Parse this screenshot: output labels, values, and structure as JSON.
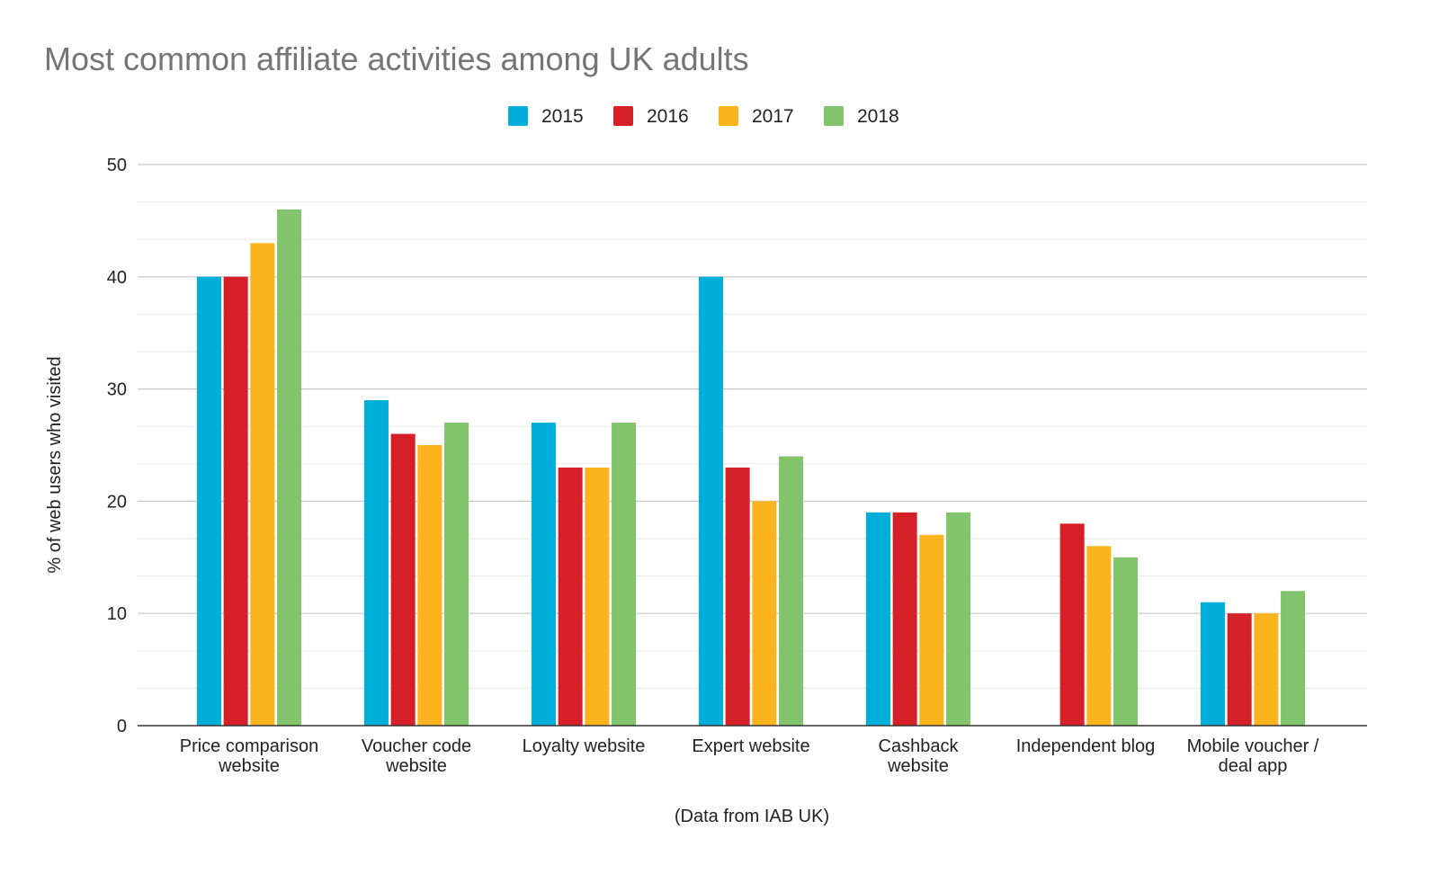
{
  "chart_data": {
    "type": "bar",
    "title": "Most common affiliate activities among UK adults",
    "xlabel": "(Data from IAB UK)",
    "ylabel": "% of web users who visited",
    "ylim": [
      0,
      50
    ],
    "yticks": [
      "0",
      "10",
      "20",
      "30",
      "40",
      "50"
    ],
    "grid": true,
    "legend_position": "top",
    "categories": [
      [
        "Price comparison",
        "website"
      ],
      [
        "Voucher code",
        "website"
      ],
      [
        "Loyalty website"
      ],
      [
        "Expert website"
      ],
      [
        "Cashback",
        "website"
      ],
      [
        "Independent blog"
      ],
      [
        "Mobile voucher /",
        "deal app"
      ]
    ],
    "series": [
      {
        "name": "2015",
        "color": "#00AEDA",
        "values": [
          40,
          29,
          27,
          40,
          19,
          null,
          11
        ]
      },
      {
        "name": "2016",
        "color": "#D62028",
        "values": [
          40,
          26,
          23,
          23,
          19,
          18,
          10
        ]
      },
      {
        "name": "2017",
        "color": "#FBB41E",
        "values": [
          43,
          25,
          23,
          20,
          17,
          16,
          10
        ]
      },
      {
        "name": "2018",
        "color": "#82C46C",
        "values": [
          46,
          27,
          27,
          24,
          19,
          15,
          12
        ]
      }
    ]
  }
}
